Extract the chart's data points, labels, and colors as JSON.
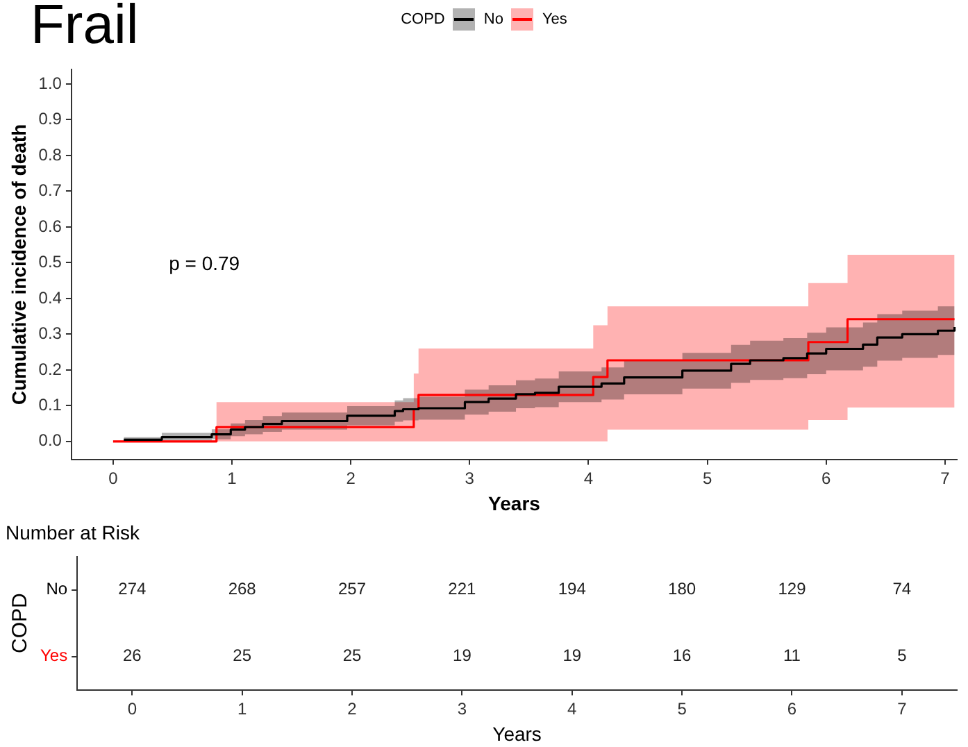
{
  "chart_data": [
    {
      "type": "step",
      "title": "Frail",
      "xlabel": "Years",
      "ylabel": "Cumulative incidence of death",
      "legend_title": "COPD",
      "legend": "top",
      "grid": false,
      "annotations": [
        "p = 0.79"
      ],
      "xlim": [
        -0.35,
        7.1
      ],
      "xticks": [
        0,
        1,
        2,
        3,
        4,
        5,
        6,
        7
      ],
      "ylim": [
        -0.05,
        1.04
      ],
      "yticks": [
        {
          "value": 0,
          "label": "0.0"
        },
        0.1,
        0.2,
        0.3,
        0.4,
        0.5,
        0.6,
        0.7,
        0.8,
        0.9,
        {
          "value": 1,
          "label": "1.0"
        }
      ],
      "series": [
        {
          "name": "No",
          "color": "#000000",
          "x": [
            0.09,
            0.41,
            0.83,
            0.99,
            1.11,
            1.26,
            1.42,
            1.97,
            2.37,
            2.44,
            2.57,
            2.96,
            3.16,
            3.39,
            3.55,
            3.75,
            4.11,
            4.3,
            4.79,
            5.2,
            5.36,
            5.64,
            5.84,
            6.0,
            6.31,
            6.43,
            6.64,
            6.94,
            7.08
          ],
          "values": [
            0.005,
            0.012,
            0.02,
            0.033,
            0.04,
            0.049,
            0.057,
            0.072,
            0.085,
            0.09,
            0.093,
            0.11,
            0.12,
            0.132,
            0.136,
            0.153,
            0.162,
            0.179,
            0.198,
            0.217,
            0.227,
            0.233,
            0.246,
            0.259,
            0.271,
            0.291,
            0.3,
            0.31,
            0.32
          ],
          "lower": [
            0,
            0.002,
            0.006,
            0.015,
            0.02,
            0.027,
            0.033,
            0.045,
            0.055,
            0.059,
            0.061,
            0.075,
            0.083,
            0.093,
            0.096,
            0.11,
            0.117,
            0.132,
            0.148,
            0.164,
            0.172,
            0.177,
            0.188,
            0.199,
            0.209,
            0.226,
            0.234,
            0.242,
            0.25
          ],
          "upper": [
            0.012,
            0.024,
            0.034,
            0.05,
            0.06,
            0.071,
            0.081,
            0.099,
            0.115,
            0.121,
            0.125,
            0.145,
            0.157,
            0.171,
            0.176,
            0.196,
            0.207,
            0.226,
            0.248,
            0.27,
            0.282,
            0.289,
            0.304,
            0.319,
            0.333,
            0.356,
            0.366,
            0.378,
            0.39
          ]
        },
        {
          "name": "Yes",
          "color": "#ff0000",
          "x": [
            0,
            0.87,
            2.53,
            2.57,
            4.04,
            4.16,
            5.85,
            6.18,
            7.08
          ],
          "values": [
            0,
            0.04,
            0.09,
            0.13,
            0.18,
            0.227,
            0.278,
            0.342,
            0.342
          ],
          "lower": [
            0,
            0,
            0,
            0,
            0,
            0.033,
            0.06,
            0.095,
            0.095
          ],
          "upper": [
            0,
            0.11,
            0.19,
            0.26,
            0.325,
            0.378,
            0.443,
            0.522,
            0.522
          ]
        }
      ]
    },
    {
      "type": "heatmap",
      "title": "Number at Risk",
      "xlabel": "Years",
      "ylabel": "COPD",
      "data_labels": true,
      "categories": [
        "0",
        "1",
        "2",
        "3",
        "4",
        "5",
        "6",
        "7"
      ],
      "y_categories": [
        "No",
        "Yes"
      ],
      "cells": [
        [
          274,
          268,
          257,
          221,
          194,
          180,
          129,
          74
        ],
        [
          26,
          25,
          25,
          19,
          19,
          16,
          11,
          5
        ]
      ]
    }
  ]
}
